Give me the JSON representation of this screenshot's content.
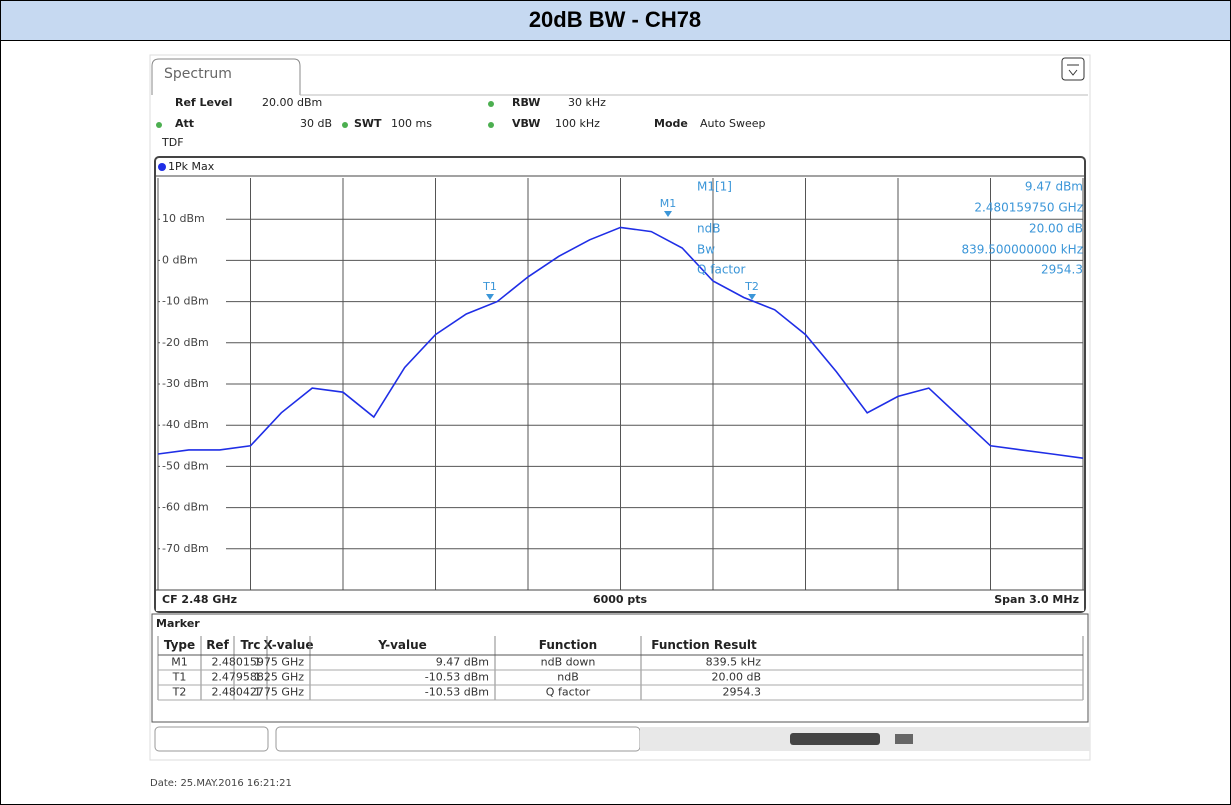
{
  "header": {
    "title": "20dB BW - CH78"
  },
  "instrument": {
    "tab": "Spectrum",
    "settings": {
      "ref_level_label": "Ref Level",
      "ref_level": "20.00 dBm",
      "rbw_label": "RBW",
      "rbw": "30 kHz",
      "att_label": "Att",
      "att": "30 dB",
      "swt_label": "SWT",
      "swt": "100 ms",
      "vbw_label": "VBW",
      "vbw": "100 kHz",
      "mode_label": "Mode",
      "mode": "Auto Sweep",
      "tdf": "TDF"
    },
    "trace_label": "1Pk Max",
    "marker_readout": {
      "labels": [
        "M1[1]",
        "ndB",
        "Bw",
        "Q factor"
      ],
      "values": [
        "9.47 dBm",
        "2.480159750 GHz",
        "20.00 dB",
        "839.500000000 kHz",
        "2954.3"
      ]
    },
    "plot_markers": [
      "M1",
      "T1",
      "T2"
    ],
    "footer": {
      "center_freq": "CF 2.48 GHz",
      "points": "6000 pts",
      "span": "Span 3.0 MHz"
    },
    "marker_table": {
      "title": "Marker",
      "headers": [
        "Type",
        "Ref",
        "Trc",
        "X-value",
        "Y-value",
        "Function",
        "Function Result"
      ],
      "rows": [
        [
          "M1",
          "",
          "1",
          "2.48015975 GHz",
          "9.47 dBm",
          "ndB down",
          "839.5 kHz"
        ],
        [
          "T1",
          "",
          "1",
          "2.47958825 GHz",
          "-10.53 dBm",
          "ndB",
          "20.00 dB"
        ],
        [
          "T2",
          "",
          "1",
          "2.48042775 GHz",
          "-10.53 dBm",
          "Q factor",
          "2954.3"
        ]
      ]
    }
  },
  "date": "Date: 25.MAY.2016  16:21:21",
  "chart_data": {
    "type": "line",
    "x": [
      2.4785,
      2.4786,
      2.4787,
      2.4788,
      2.4789,
      2.479,
      2.4791,
      2.4792,
      2.4793,
      2.4794,
      2.4795,
      2.4796,
      2.4797,
      2.4798,
      2.4799,
      2.48,
      2.4801,
      2.4802,
      2.4803,
      2.4804,
      2.4805,
      2.4806,
      2.4807,
      2.4808,
      2.4809,
      2.481,
      2.4811,
      2.4812,
      2.4813,
      2.4814,
      2.4815
    ],
    "values": [
      -47,
      -46,
      -46,
      -45,
      -37,
      -31,
      -32,
      -38,
      -26,
      -18,
      -13,
      -10,
      -4,
      1,
      5,
      8,
      7,
      3,
      -5,
      -9,
      -12,
      -18,
      -27,
      -37,
      -33,
      -31,
      -38,
      -45,
      -46,
      -47,
      -48
    ],
    "xlim": [
      2.4785,
      2.4815
    ],
    "ylim": [
      -80,
      20
    ],
    "yticks": [
      {
        "value": 10,
        "label": "10 dBm"
      },
      {
        "value": 0,
        "label": "0 dBm"
      },
      {
        "value": -10,
        "label": "-10 dBm"
      },
      {
        "value": -20,
        "label": "-20 dBm"
      },
      {
        "value": -30,
        "label": "-30 dBm"
      },
      {
        "value": -40,
        "label": "-40 dBm"
      },
      {
        "value": -50,
        "label": "-50 dBm"
      },
      {
        "value": -60,
        "label": "-60 dBm"
      },
      {
        "value": -70,
        "label": "-70 dBm"
      }
    ],
    "color": "#1f2ee6",
    "grid": true
  }
}
